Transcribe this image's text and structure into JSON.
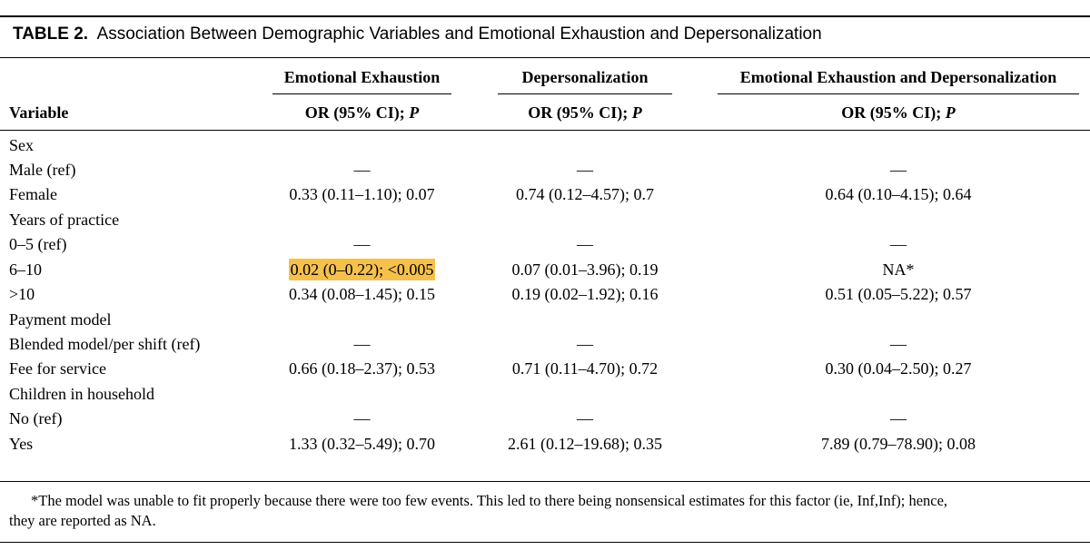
{
  "table": {
    "number": "TABLE 2.",
    "caption": "Association Between Demographic Variables and Emotional Exhaustion and Depersonalization",
    "group_headers": [
      "Emotional Exhaustion",
      "Depersonalization",
      "Emotional Exhaustion and Depersonalization"
    ],
    "variable_header": "Variable",
    "sub_header": {
      "prefix": "OR (95% CI); ",
      "p": "P"
    },
    "rows": [
      {
        "label": "Sex",
        "c1": "",
        "c2": "",
        "c3": ""
      },
      {
        "label": "Male (ref)",
        "c1": "—",
        "c2": "—",
        "c3": "—"
      },
      {
        "label": "Female",
        "c1": "0.33 (0.11–1.10); 0.07",
        "c2": "0.74 (0.12–4.57); 0.7",
        "c3": "0.64 (0.10–4.15); 0.64"
      },
      {
        "label": "Years of practice",
        "c1": "",
        "c2": "",
        "c3": ""
      },
      {
        "label": "0–5 (ref)",
        "c1": "—",
        "c2": "—",
        "c3": "—"
      },
      {
        "label": "6–10",
        "c1": "0.02 (0–0.22); <0.005",
        "c2": "0.07 (0.01–3.96); 0.19",
        "c3": "NA*"
      },
      {
        "label": ">10",
        "c1": "0.34 (0.08–1.45); 0.15",
        "c2": "0.19 (0.02–1.92); 0.16",
        "c3": "0.51 (0.05–5.22); 0.57"
      },
      {
        "label": "Payment model",
        "c1": "",
        "c2": "",
        "c3": ""
      },
      {
        "label": "Blended model/per shift (ref)",
        "c1": "—",
        "c2": "—",
        "c3": "—"
      },
      {
        "label": "Fee for service",
        "c1": "0.66 (0.18–2.37); 0.53",
        "c2": "0.71 (0.11–4.70); 0.72",
        "c3": "0.30 (0.04–2.50); 0.27"
      },
      {
        "label": "Children in household",
        "c1": "",
        "c2": "",
        "c3": ""
      },
      {
        "label": "No (ref)",
        "c1": "—",
        "c2": "—",
        "c3": "—"
      },
      {
        "label": "Yes",
        "c1": "1.33 (0.32–5.49); 0.70",
        "c2": "2.61 (0.12–19.68); 0.35",
        "c3": "7.89 (0.79–78.90); 0.08"
      }
    ],
    "highlight_color": "#f6c14b",
    "footnote_line1": "*The model was unable to fit properly because there were too few events. This led to there being nonsensical estimates for this factor (ie, Inf,Inf); hence,",
    "footnote_line2": "they are reported as NA."
  }
}
